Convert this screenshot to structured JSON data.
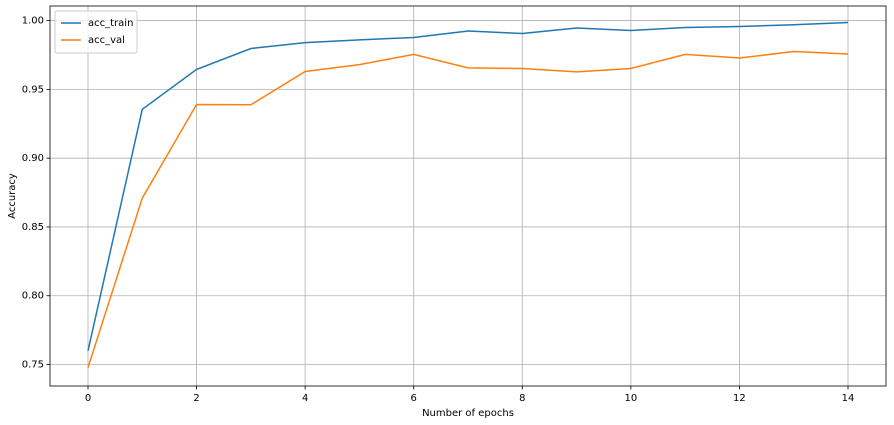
{
  "chart_data": {
    "type": "line",
    "xlabel": "Number of epochs",
    "ylabel": "Accuracy",
    "x": [
      0,
      1,
      2,
      3,
      4,
      5,
      6,
      7,
      8,
      9,
      10,
      11,
      12,
      13,
      14
    ],
    "series": [
      {
        "name": "acc_train",
        "color": "#1f77b4",
        "values": [
          0.76,
          0.9355,
          0.9645,
          0.9797,
          0.984,
          0.986,
          0.9877,
          0.9924,
          0.9906,
          0.9946,
          0.9928,
          0.995,
          0.9957,
          0.997,
          0.9986
        ]
      },
      {
        "name": "acc_val",
        "color": "#ff7f0e",
        "values": [
          0.7478,
          0.871,
          0.939,
          0.9388,
          0.963,
          0.968,
          0.9754,
          0.9656,
          0.9652,
          0.9627,
          0.9652,
          0.9754,
          0.9728,
          0.9775,
          0.9757
        ]
      }
    ],
    "xlim": [
      -0.7,
      14.7
    ],
    "xticks": [
      0,
      2,
      4,
      6,
      8,
      10,
      12,
      14
    ],
    "ylim": [
      0.7344,
      1.0106
    ],
    "yticks": [
      0.75,
      {
        "value": 0.8,
        "label": "0.80"
      },
      0.85,
      {
        "value": 0.9,
        "label": "0.90"
      },
      0.95,
      {
        "value": 1.0,
        "label": "1.00"
      }
    ],
    "grid": true,
    "legend": "upper left"
  }
}
